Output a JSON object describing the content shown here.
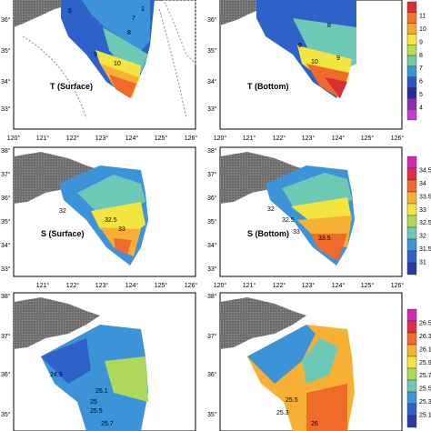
{
  "panels": [
    {
      "id": "t-surface",
      "label": "T (Surface)",
      "lat_ticks": [
        "36°",
        "35°",
        "34°",
        "33°"
      ],
      "lon_ticks": [
        "120°",
        "121°",
        "122°",
        "123°",
        "124°",
        "125°",
        "126°"
      ],
      "contour_labels": [
        "1",
        "6",
        "7",
        "8",
        "9",
        "10"
      ]
    },
    {
      "id": "t-bottom",
      "label": "T (Bottom)",
      "lat_ticks": [
        "36°",
        "35°",
        "34°",
        "33°"
      ],
      "lon_ticks": [
        "120°",
        "121°",
        "122°",
        "123°",
        "124°",
        "125°",
        "126°"
      ],
      "contour_labels": [
        "8",
        "9",
        "10",
        "9"
      ]
    },
    {
      "id": "s-surface",
      "label": "S (Surface)",
      "lat_ticks": [
        "38°",
        "37°",
        "36°",
        "35°",
        "34°",
        "33°"
      ],
      "lon_ticks": [
        "121°",
        "122°",
        "123°",
        "124°",
        "125°",
        "126°"
      ],
      "contour_labels": [
        "32",
        "32.5",
        "33"
      ]
    },
    {
      "id": "s-bottom",
      "label": "S (Bottom)",
      "lat_ticks": [
        "38°",
        "37°",
        "36°",
        "35°",
        "34°",
        "33°"
      ],
      "lon_ticks": [
        "120°",
        "121°",
        "122°",
        "123°",
        "124°",
        "125°",
        "126°"
      ],
      "contour_labels": [
        "32",
        "32.5",
        "33",
        "33.5"
      ]
    },
    {
      "id": "d-surface",
      "label": "",
      "lat_ticks": [
        "38°",
        "37°",
        "36°",
        "35°"
      ],
      "lon_ticks": [],
      "contour_labels": [
        "24.9",
        "25.1",
        "25",
        "25.5",
        "25.7"
      ]
    },
    {
      "id": "d-bottom",
      "label": "",
      "lat_ticks": [
        "38°",
        "37°",
        "36°",
        "35°"
      ],
      "lon_ticks": [],
      "contour_labels": [
        "25.5",
        "25.3",
        "26"
      ]
    }
  ],
  "colorbars": [
    {
      "id": "temperature",
      "labels": [
        "11",
        "10",
        "9",
        "8",
        "7",
        "6",
        "5",
        "4"
      ],
      "colors": [
        "#d7302e",
        "#f0742e",
        "#f6a935",
        "#f7e642",
        "#b6dd52",
        "#76c9a8",
        "#3b96d6",
        "#2956c6",
        "#2a2a9a",
        "#8b2bb6",
        "#c43fcf"
      ]
    },
    {
      "id": "salinity",
      "labels": [
        "34.5",
        "34",
        "33.5",
        "33",
        "32.5",
        "32",
        "31.5",
        "31"
      ],
      "colors": [
        "#cf2bb0",
        "#e02b47",
        "#f06b2b",
        "#f6b135",
        "#f3e541",
        "#aed85a",
        "#6dc8b5",
        "#3c93d8",
        "#2f62c9",
        "#283a9d"
      ]
    },
    {
      "id": "density",
      "labels": [
        "26.5",
        "26.3",
        "26.1",
        "25.9",
        "25.7",
        "25.5",
        "25.3",
        "25.1"
      ],
      "colors": [
        "#cf2bb0",
        "#e02b47",
        "#f06b2b",
        "#f6b135",
        "#f3e541",
        "#aed85a",
        "#6dc8b5",
        "#3c93d8",
        "#2f62c9",
        "#283a9d"
      ]
    }
  ]
}
